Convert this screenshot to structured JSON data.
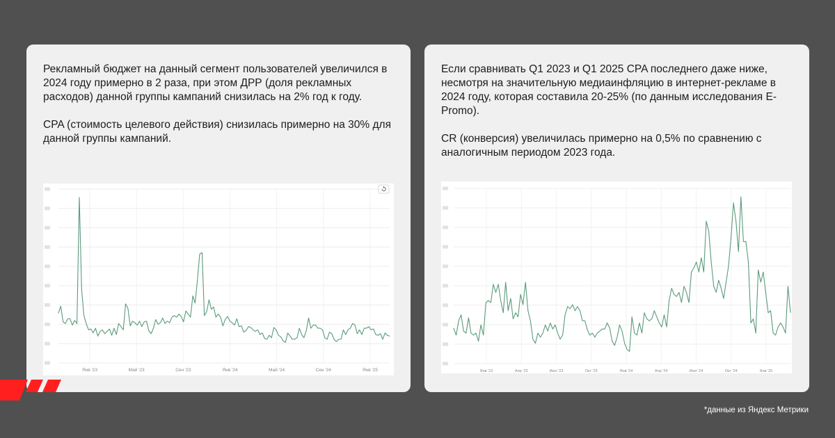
{
  "colors": {
    "background": "#505050",
    "card": "#f0f0f0",
    "chart_line": "#5a9a7a",
    "logo_red": "#ff1f1f"
  },
  "left_card": {
    "paragraphs": [
      "Рекламный бюджет на данный сегмент пользователей увеличился в 2024 году примерно в 2 раза, при этом ДРР (доля рекламных расходов) данной группы кампаний снизилась на 2% год к году.",
      "CPA (стоимость целевого действия) снизилась примерно на 30% для данной группы кампаний."
    ]
  },
  "right_card": {
    "paragraphs": [
      "Если сравнивать Q1 2023 и Q1 2025 CPA последнего даже ниже, несмотря на значительную медиаинфляцию в интернет-рекламе в 2024 году, которая составила 20-25% (по данным исследования E-Promo).",
      "CR (конверсия) увеличилась примерно на 0,5% по сравнению с аналогичным периодом 2023 года."
    ]
  },
  "footnote": "*данные из Яндекс Метрики",
  "chart_data": [
    {
      "type": "line",
      "x_tick_labels": [
        "Янв '23",
        "Май '23",
        "Сен '23",
        "Янв '24",
        "Май '24",
        "Сен '24",
        "Янв '25"
      ],
      "y_tick_labels_visible": false,
      "grid": true,
      "legend": "none",
      "series": [
        {
          "values": [
            63,
            72,
            52,
            50,
            56,
            56,
            48,
            54,
            50,
            210,
            93,
            60,
            50,
            42,
            43,
            38,
            44,
            34,
            40,
            42,
            37,
            40,
            43,
            35,
            44,
            36,
            50,
            46,
            42,
            75,
            69,
            47,
            53,
            51,
            48,
            53,
            46,
            52,
            53,
            41,
            37,
            44,
            55,
            49,
            51,
            57,
            50,
            53,
            51,
            58,
            60,
            58,
            62,
            59,
            52,
            66,
            62,
            58,
            85,
            76,
            105,
            138,
            140,
            60,
            65,
            80,
            68,
            71,
            58,
            62,
            58,
            47,
            55,
            59,
            53,
            51,
            48,
            56,
            46,
            47,
            39,
            41,
            46,
            45,
            42,
            40,
            42,
            36,
            38,
            31,
            30,
            35,
            32,
            45,
            42,
            35,
            33,
            28,
            26,
            38,
            34,
            30,
            30,
            32,
            44,
            36,
            32,
            41,
            57,
            44,
            48,
            48,
            44,
            44,
            42,
            32,
            30,
            39,
            37,
            30,
            27,
            30,
            30,
            42,
            36,
            42,
            44,
            50,
            48,
            37,
            42,
            36,
            44,
            44,
            46,
            42,
            43,
            36,
            35,
            37,
            30,
            38,
            35,
            34
          ],
          "color": "#5a9a7a"
        }
      ]
    },
    {
      "type": "line",
      "x_tick_labels": [
        "Янв '23",
        "Апр '23",
        "Июл '23",
        "Окт '23",
        "Янв '24",
        "Апр '24",
        "Июл '24",
        "Окт '24",
        "Янв '25"
      ],
      "y_tick_labels_visible": false,
      "grid": true,
      "legend": "none",
      "series": [
        {
          "values": [
            35,
            28,
            42,
            48,
            32,
            30,
            45,
            30,
            28,
            30,
            22,
            38,
            28,
            60,
            62,
            60,
            78,
            70,
            78,
            62,
            50,
            80,
            52,
            64,
            44,
            50,
            46,
            68,
            58,
            80,
            52,
            42,
            24,
            20,
            30,
            26,
            30,
            38,
            32,
            40,
            34,
            38,
            30,
            24,
            28,
            48,
            56,
            54,
            58,
            52,
            56,
            52,
            42,
            42,
            33,
            28,
            30,
            26,
            30,
            32,
            34,
            34,
            40,
            35,
            22,
            18,
            26,
            38,
            32,
            20,
            14,
            12,
            46,
            30,
            28,
            40,
            30,
            50,
            44,
            42,
            44,
            52,
            46,
            40,
            36,
            48,
            36,
            62,
            74,
            68,
            66,
            70,
            60,
            76,
            70,
            60,
            90,
            94,
            100,
            90,
            104,
            90,
            140,
            130,
            100,
            76,
            70,
            82,
            74,
            64,
            80,
            96,
            124,
            158,
            140,
            110,
            164,
            120,
            120,
            100,
            40,
            44,
            30,
            92,
            80,
            90,
            70,
            50,
            52,
            30,
            28,
            36,
            40,
            36,
            30,
            76,
            50
          ],
          "color": "#5a9a7a"
        }
      ]
    }
  ]
}
